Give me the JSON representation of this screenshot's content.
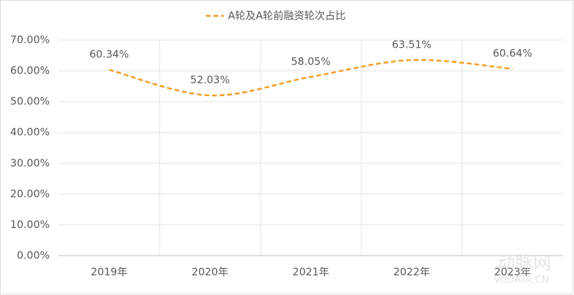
{
  "chart_data": {
    "type": "line",
    "title": null,
    "categories": [
      "2019年",
      "2020年",
      "2021年",
      "2022年",
      "2023年"
    ],
    "series": [
      {
        "name": "A轮及A轮前融资轮次占比",
        "color": "#f39a1e",
        "values": [
          60.34,
          52.03,
          58.05,
          63.51,
          60.64
        ],
        "value_labels": [
          "60.34%",
          "52.03%",
          "58.05%",
          "63.51%",
          "60.64%"
        ]
      }
    ],
    "ylim": [
      0,
      70
    ],
    "yticks": [
      {
        "value": 0,
        "label": "0.00%"
      },
      {
        "value": 10,
        "label": "10.00%"
      },
      {
        "value": 20,
        "label": "20.00%"
      },
      {
        "value": 30,
        "label": "30.00%"
      },
      {
        "value": 40,
        "label": "40.00%"
      },
      {
        "value": 50,
        "label": "50.00%"
      },
      {
        "value": 60,
        "label": "60.00%"
      },
      {
        "value": 70,
        "label": "70.00%"
      }
    ],
    "grid": true,
    "smooth": true,
    "dashed": true,
    "legend": "top",
    "watermark": [
      "动脉网",
      "VBDATA.CN"
    ]
  }
}
